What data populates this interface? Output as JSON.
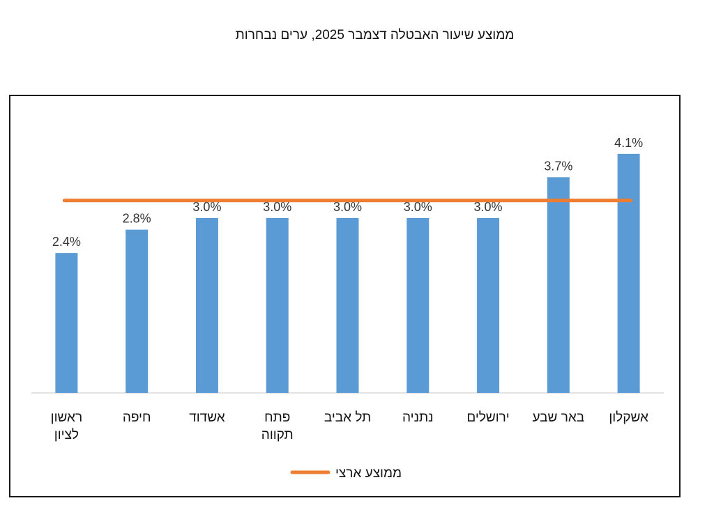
{
  "title": "ממוצע שיעור האבטלה דצמבר 2025, ערים נבחרות",
  "chart_data": {
    "type": "bar",
    "categories": [
      [
        "ראשון",
        "לציון"
      ],
      [
        "חיפה"
      ],
      [
        "אשדוד"
      ],
      [
        "פתח",
        "תקווה"
      ],
      [
        "תל אביב"
      ],
      [
        "נתניה"
      ],
      [
        "ירושלים"
      ],
      [
        "באר שבע"
      ],
      [
        "אשקלון"
      ]
    ],
    "values": [
      2.4,
      2.8,
      3.0,
      3.0,
      3.0,
      3.0,
      3.0,
      3.7,
      4.1
    ],
    "value_labels": [
      "2.4%",
      "2.8%",
      "3.0%",
      "3.0%",
      "3.0%",
      "3.0%",
      "3.0%",
      "3.7%",
      "4.1%"
    ],
    "reference_line": {
      "name": "ממוצע ארצי",
      "value": 3.3,
      "color": "#ED7D31"
    },
    "bar_color": "#5B9BD5",
    "ylim": [
      0,
      4.6
    ],
    "grid": false,
    "legend_position": "bottom",
    "xlabel": "",
    "ylabel": ""
  }
}
